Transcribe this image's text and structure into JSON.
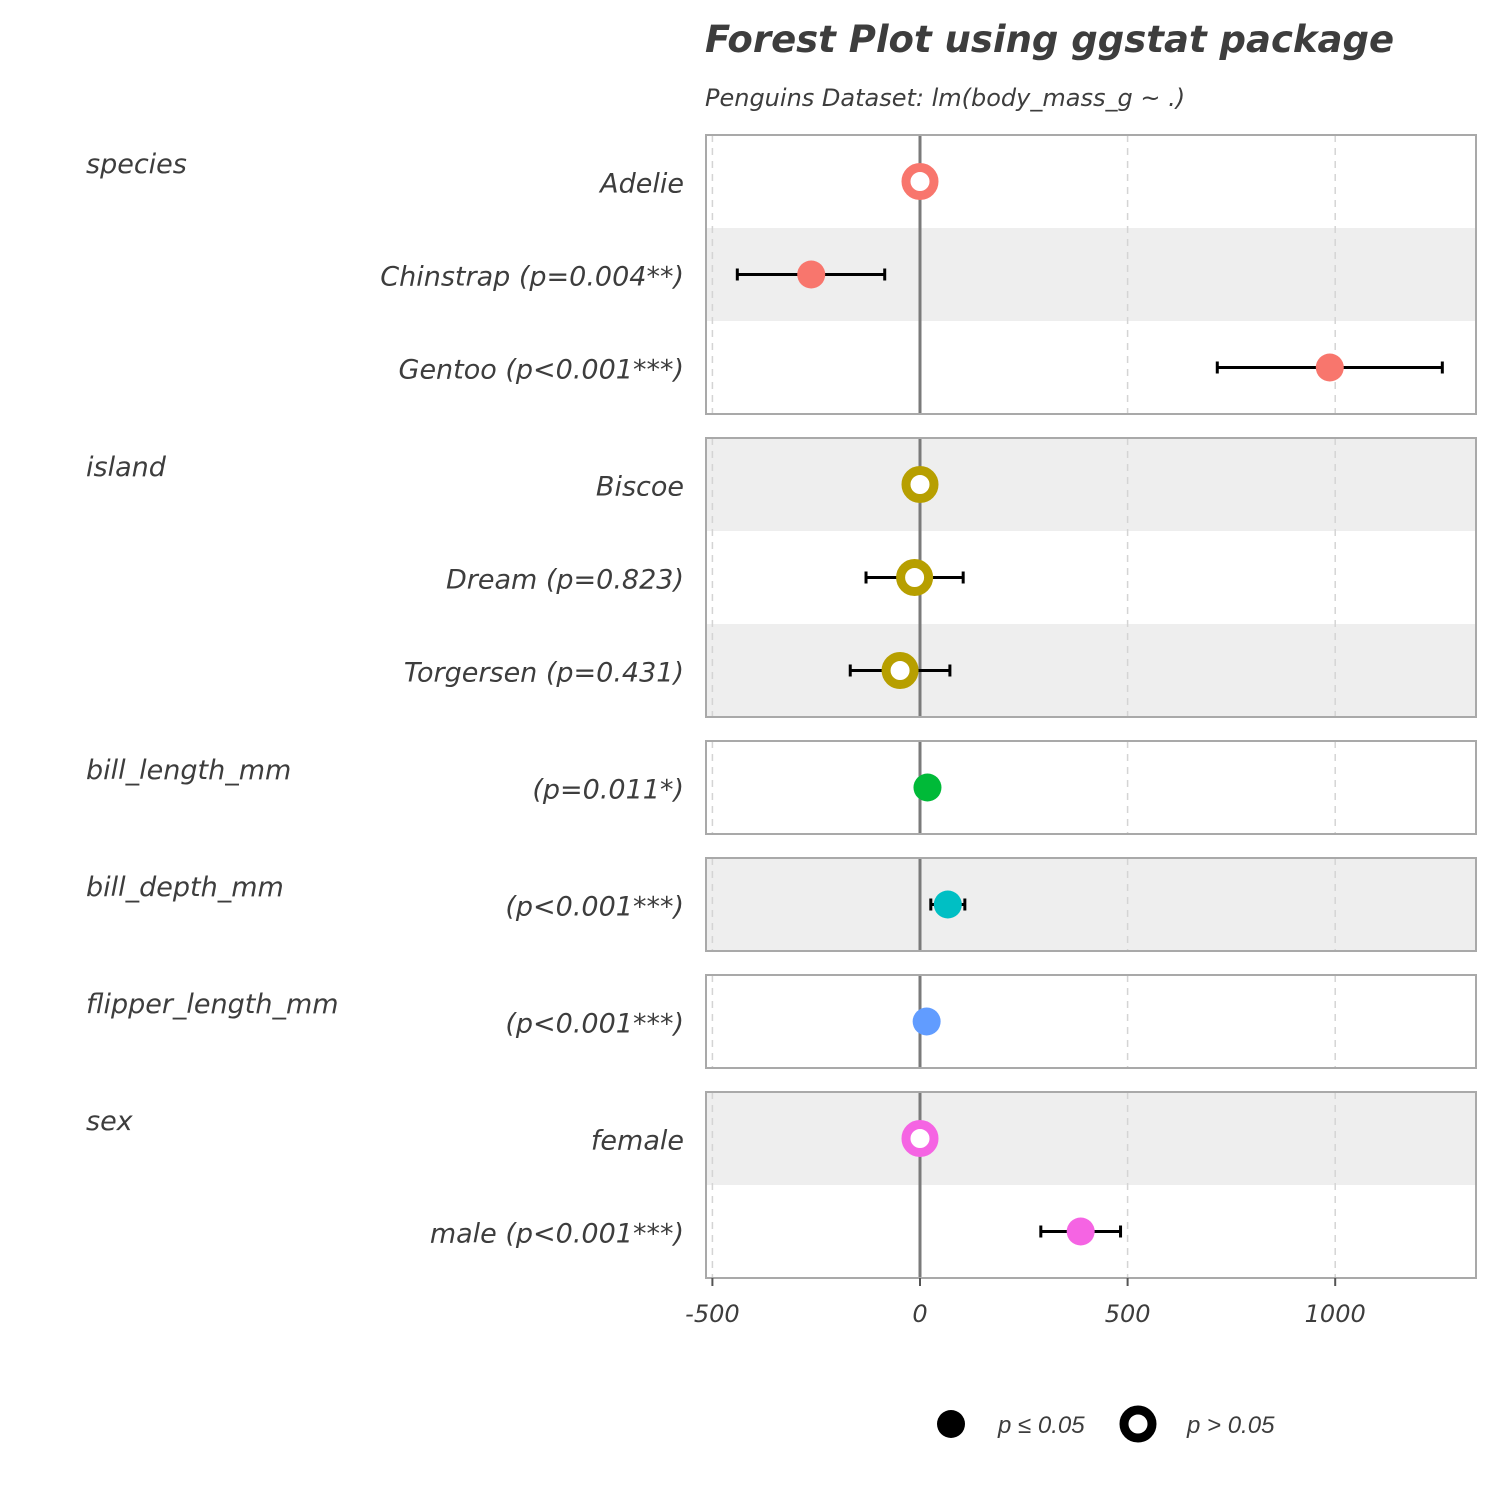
{
  "chart_data": {
    "type": "scatter",
    "subtype": "forest-plot",
    "title": "Forest Plot using ggstat package",
    "subtitle": "Penguins Dataset: lm(body_mass_g ~ .)",
    "xlabel": "",
    "ylabel": "",
    "xlim": [
      -520,
      1350
    ],
    "x_ticks": [
      -500,
      0,
      500,
      1000
    ],
    "x_tick_labels": [
      "-500",
      "0",
      "500",
      "1000"
    ],
    "grid": {
      "major_x": true,
      "dashed": true
    },
    "reference_line": 0,
    "legend_position": "bottom",
    "legend": [
      {
        "label": "p ≤ 0.05",
        "style": "filled"
      },
      {
        "label": "p > 0.05",
        "style": "hollow"
      }
    ],
    "groups": [
      {
        "name": "species",
        "color": "#F8766D",
        "terms": [
          {
            "label": "Adelie",
            "estimate": 0,
            "ci_low": null,
            "ci_high": null,
            "significant": false
          },
          {
            "label": "Chinstrap (p=0.004**)",
            "estimate": -262,
            "ci_low": -440,
            "ci_high": -85,
            "significant": true
          },
          {
            "label": "Gentoo (p<0.001***)",
            "estimate": 987,
            "ci_low": 716,
            "ci_high": 1258,
            "significant": true
          }
        ]
      },
      {
        "name": "island",
        "color": "#B79F00",
        "terms": [
          {
            "label": "Biscoe",
            "estimate": 0,
            "ci_low": null,
            "ci_high": null,
            "significant": false
          },
          {
            "label": "Dream (p=0.823)",
            "estimate": -13,
            "ci_low": -130,
            "ci_high": 104,
            "significant": false
          },
          {
            "label": "Torgersen (p=0.431)",
            "estimate": -48,
            "ci_low": -168,
            "ci_high": 72,
            "significant": false
          }
        ]
      },
      {
        "name": "bill_length_mm",
        "color": "#00BA38",
        "terms": [
          {
            "label": "(p=0.011*)",
            "estimate": 18,
            "ci_low": 4,
            "ci_high": 33,
            "significant": true
          }
        ]
      },
      {
        "name": "bill_depth_mm",
        "color": "#00BFC4",
        "terms": [
          {
            "label": "(p<0.001***)",
            "estimate": 67,
            "ci_low": 26,
            "ci_high": 108,
            "significant": true
          }
        ]
      },
      {
        "name": "flipper_length_mm",
        "color": "#619CFF",
        "terms": [
          {
            "label": "(p<0.001***)",
            "estimate": 16,
            "ci_low": 9,
            "ci_high": 23,
            "significant": true
          }
        ]
      },
      {
        "name": "sex",
        "color": "#F564E3",
        "terms": [
          {
            "label": "female",
            "estimate": 0,
            "ci_low": null,
            "ci_high": null,
            "significant": false
          },
          {
            "label": "male (p<0.001***)",
            "estimate": 387,
            "ci_low": 291,
            "ci_high": 483,
            "significant": true
          }
        ]
      }
    ]
  }
}
